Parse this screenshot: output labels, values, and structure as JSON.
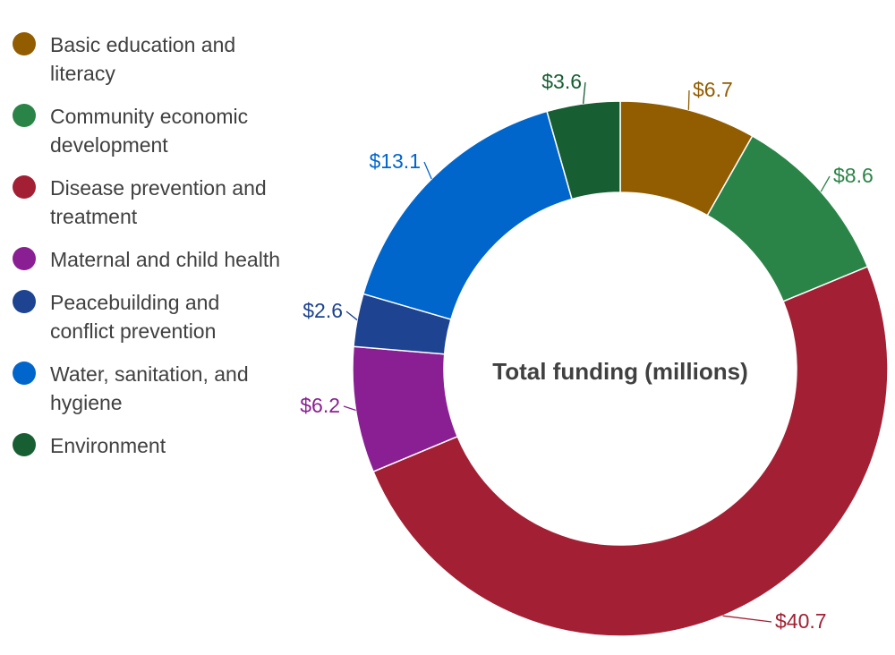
{
  "chart_data": {
    "type": "pie",
    "subtype": "donut",
    "center_title": "Total funding (millions)",
    "legend_position": "left",
    "slices": [
      {
        "label": "Basic education and literacy",
        "value": 6.7,
        "display": "$6.7",
        "color": "#925c00"
      },
      {
        "label": "Community economic development",
        "value": 8.6,
        "display": "$8.6",
        "color": "#2a8447"
      },
      {
        "label": "Disease prevention and treatment",
        "value": 40.7,
        "display": "$40.7",
        "color": "#a32034"
      },
      {
        "label": "Maternal and child health",
        "value": 6.2,
        "display": "$6.2",
        "color": "#8a1f93"
      },
      {
        "label": "Peacebuilding and conflict prevention",
        "value": 2.6,
        "display": "$2.6",
        "color": "#1d4391"
      },
      {
        "label": "Water, sanitation, and hygiene",
        "value": 13.1,
        "display": "$13.1",
        "color": "#0066cc"
      },
      {
        "label": "Environment",
        "value": 3.6,
        "display": "$3.6",
        "color": "#175f33"
      }
    ]
  }
}
